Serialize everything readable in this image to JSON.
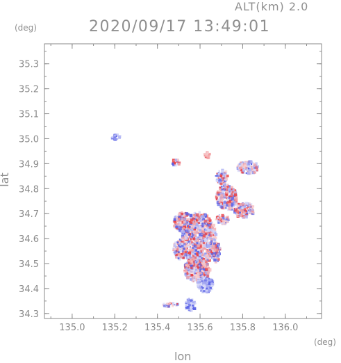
{
  "header": {
    "alt_label": "ALT(km) 2.0",
    "timestamp": "2020/09/17 13:49:01"
  },
  "axes": {
    "lat_unit": "(deg)",
    "lon_unit": "(deg)",
    "xlabel": "lon",
    "ylabel": "lat"
  },
  "chart_data": {
    "type": "scatter",
    "title": "2020/09/17 13:49:01",
    "xlabel": "lon",
    "ylabel": "lat",
    "xlim": [
      134.87,
      136.17
    ],
    "ylim": [
      34.28,
      35.38
    ],
    "xticks": [
      135.0,
      135.2,
      135.4,
      135.6,
      135.8,
      136.0
    ],
    "yticks": [
      34.3,
      34.4,
      34.5,
      34.6,
      34.7,
      34.8,
      34.9,
      35.0,
      35.1,
      35.2,
      35.3
    ],
    "xtick_labels": [
      "135.0",
      "135.2",
      "135.4",
      "135.6",
      "135.8",
      "136.0"
    ],
    "ytick_labels": [
      "34.3",
      "34.4",
      "34.5",
      "34.6",
      "34.7",
      "34.8",
      "34.9",
      "35.0",
      "35.1",
      "35.2",
      "35.3"
    ],
    "grid": false,
    "colors": {
      "positive": "#e8454a",
      "negative": "#5a62e6"
    },
    "echo_regions": [
      {
        "lon": 135.2,
        "lat": 35.01,
        "rx": 0.02,
        "ry": 0.012,
        "sign": "neg"
      },
      {
        "lon": 135.59,
        "lat": 34.6,
        "rx": 0.08,
        "ry": 0.11,
        "sign": "mix"
      },
      {
        "lon": 135.52,
        "lat": 34.67,
        "rx": 0.05,
        "ry": 0.04,
        "sign": "mix"
      },
      {
        "lon": 135.58,
        "lat": 34.48,
        "rx": 0.06,
        "ry": 0.05,
        "sign": "mix"
      },
      {
        "lon": 135.62,
        "lat": 34.42,
        "rx": 0.04,
        "ry": 0.03,
        "sign": "neg"
      },
      {
        "lon": 135.72,
        "lat": 34.77,
        "rx": 0.05,
        "ry": 0.05,
        "sign": "mix"
      },
      {
        "lon": 135.8,
        "lat": 34.72,
        "rx": 0.05,
        "ry": 0.03,
        "sign": "mix"
      },
      {
        "lon": 135.82,
        "lat": 34.89,
        "rx": 0.05,
        "ry": 0.025,
        "sign": "mix"
      },
      {
        "lon": 135.7,
        "lat": 34.85,
        "rx": 0.03,
        "ry": 0.03,
        "sign": "mix"
      },
      {
        "lon": 135.55,
        "lat": 34.34,
        "rx": 0.025,
        "ry": 0.025,
        "sign": "neg"
      },
      {
        "lon": 135.46,
        "lat": 34.34,
        "rx": 0.04,
        "ry": 0.008,
        "sign": "mix"
      },
      {
        "lon": 135.48,
        "lat": 34.91,
        "rx": 0.02,
        "ry": 0.012,
        "sign": "mix"
      },
      {
        "lon": 135.63,
        "lat": 34.94,
        "rx": 0.015,
        "ry": 0.012,
        "sign": "pos"
      },
      {
        "lon": 135.7,
        "lat": 34.68,
        "rx": 0.03,
        "ry": 0.02,
        "sign": "mix"
      },
      {
        "lon": 135.5,
        "lat": 34.56,
        "rx": 0.03,
        "ry": 0.04,
        "sign": "mix"
      },
      {
        "lon": 135.67,
        "lat": 34.55,
        "rx": 0.02,
        "ry": 0.04,
        "sign": "mix"
      }
    ]
  }
}
